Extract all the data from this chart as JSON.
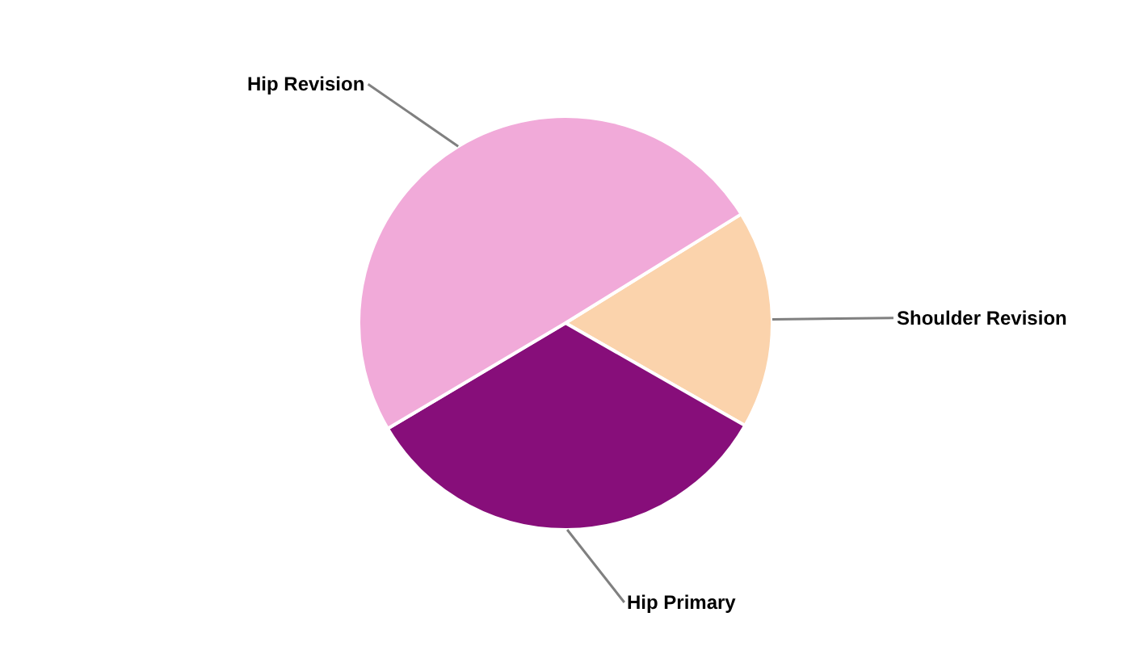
{
  "chart_data": {
    "type": "pie",
    "categories": [
      "Shoulder Revision",
      "Hip Primary",
      "Hip Revision"
    ],
    "values": [
      17.1,
      33.2,
      49.7
    ],
    "colors": [
      "#fbd3ac",
      "#870e7a",
      "#f1aad9"
    ],
    "legend": false
  }
}
